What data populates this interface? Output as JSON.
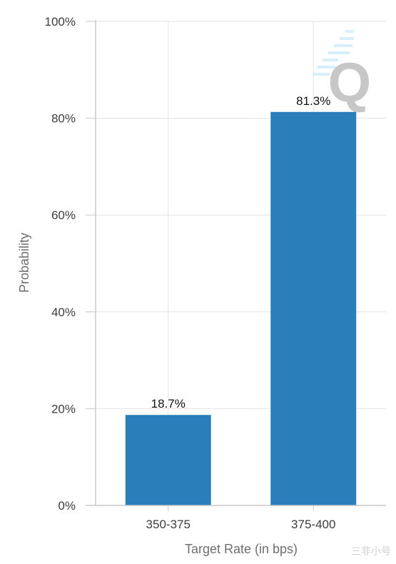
{
  "chart_data": {
    "type": "bar",
    "title": "",
    "xlabel": "Target Rate (in bps)",
    "ylabel": "Probability",
    "categories": [
      "350-375",
      "375-400"
    ],
    "values": [
      18.7,
      81.3
    ],
    "data_labels": [
      "18.7%",
      "81.3%"
    ],
    "ylim": [
      0,
      100
    ],
    "yticks": [
      0,
      20,
      40,
      60,
      80,
      100
    ],
    "ytick_labels": [
      "0%",
      "20%",
      "40%",
      "60%",
      "80%",
      "100%"
    ],
    "grid": true,
    "legend": "none",
    "bar_color": "#2a7fba"
  },
  "watermark": {
    "logo_letter": "Q",
    "corner_text": "三非小号"
  }
}
